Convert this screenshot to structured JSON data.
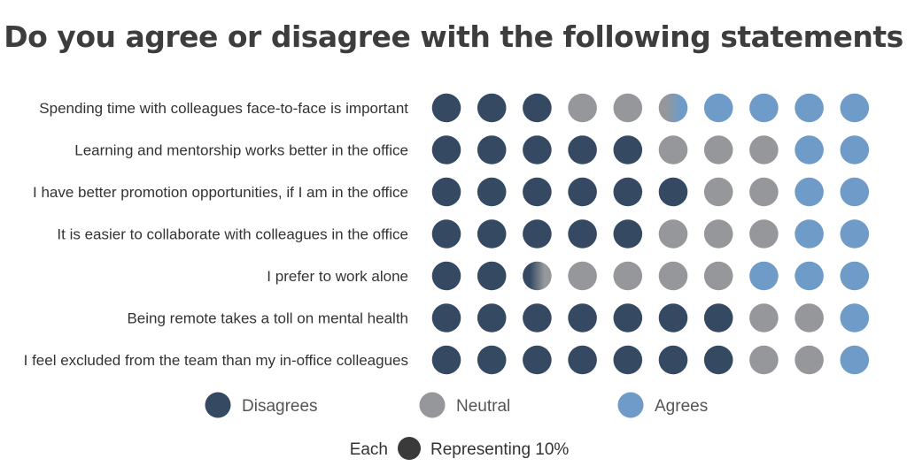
{
  "chart_data": {
    "type": "waffle",
    "title": "Do you agree or disagree with the following statements",
    "categories": [
      "Spending time with colleagues face-to-face is important",
      "Learning and mentorship works better in the office",
      "I have better promotion opportunities, if I am in the office",
      "It is easier to collaborate with colleagues in the office",
      "I prefer to work alone",
      "Being remote takes a toll on mental health",
      "I feel excluded from the team than my in-office colleagues"
    ],
    "series": [
      {
        "name": "Disagrees",
        "color": "#354a62",
        "values": [
          30,
          50,
          60,
          50,
          25,
          70,
          70
        ]
      },
      {
        "name": "Neutral",
        "color": "#96979b",
        "values": [
          25,
          30,
          20,
          30,
          45,
          20,
          20
        ]
      },
      {
        "name": "Agrees",
        "color": "#6f9bc8",
        "values": [
          45,
          20,
          20,
          20,
          30,
          10,
          10
        ]
      }
    ],
    "unit_value": 10,
    "units_per_row": 10,
    "unit_note": {
      "prefix": "Each",
      "suffix": "Representing 10%",
      "color": "#3a3a3a"
    }
  }
}
